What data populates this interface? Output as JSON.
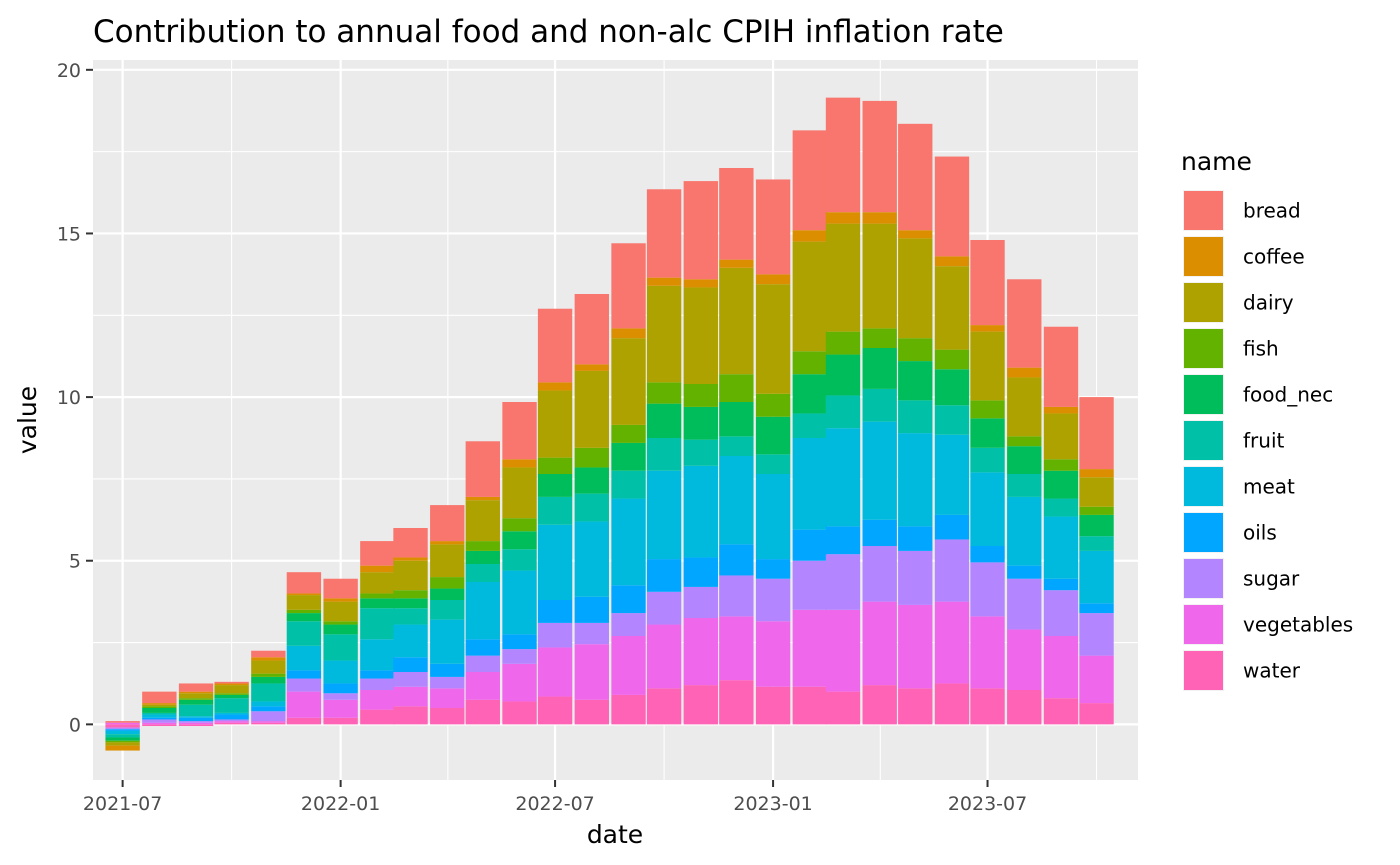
{
  "chart_data": {
    "type": "bar",
    "stacked": true,
    "title": "Contribution to annual food and non-alc CPIH inflation rate",
    "xlabel": "date",
    "ylabel": "value",
    "ylim": [
      -1.7,
      20.3
    ],
    "xlim": [
      "2021-06-06",
      "2023-11-05"
    ],
    "yticks": [
      0,
      5,
      10,
      15,
      20
    ],
    "xticks": [
      "2021-07",
      "2022-01",
      "2022-07",
      "2023-01",
      "2023-07"
    ],
    "legend_title": "name",
    "legend_position": "right",
    "grid": true,
    "x": [
      "2021-07-01",
      "2021-08-01",
      "2021-09-01",
      "2021-10-01",
      "2021-11-01",
      "2021-12-01",
      "2022-01-01",
      "2022-02-01",
      "2022-03-01",
      "2022-04-01",
      "2022-05-01",
      "2022-06-01",
      "2022-07-01",
      "2022-08-01",
      "2022-09-01",
      "2022-10-01",
      "2022-11-01",
      "2022-12-01",
      "2023-01-01",
      "2023-02-01",
      "2023-03-01",
      "2023-04-01",
      "2023-05-01",
      "2023-06-01",
      "2023-07-01",
      "2023-08-01",
      "2023-09-01",
      "2023-10-01"
    ],
    "series": [
      {
        "name": "bread",
        "color": "#F8766D",
        "values": [
          0.05,
          0.35,
          0.25,
          0.05,
          0.2,
          0.65,
          0.6,
          0.75,
          0.9,
          1.1,
          1.7,
          1.75,
          2.25,
          2.15,
          2.6,
          2.7,
          3.0,
          2.8,
          2.9,
          3.05,
          3.5,
          3.4,
          3.25,
          3.05,
          2.6,
          2.7,
          2.45,
          2.2
        ]
      },
      {
        "name": "coffee",
        "color": "#DB8E00",
        "values": [
          -0.15,
          0.05,
          0.05,
          0.05,
          0.1,
          0.05,
          0.1,
          0.2,
          0.1,
          0.1,
          0.1,
          0.25,
          0.25,
          0.2,
          0.3,
          0.25,
          0.25,
          0.25,
          0.3,
          0.35,
          0.35,
          0.35,
          0.25,
          0.3,
          0.2,
          0.3,
          0.2,
          0.25
        ]
      },
      {
        "name": "dairy",
        "color": "#AEA200",
        "values": [
          -0.1,
          0.05,
          0.15,
          0.25,
          0.4,
          0.45,
          0.6,
          0.65,
          0.9,
          1.0,
          1.25,
          1.55,
          2.05,
          2.35,
          2.65,
          2.95,
          2.95,
          3.25,
          3.35,
          3.35,
          3.3,
          3.2,
          3.05,
          2.55,
          2.1,
          1.8,
          1.4,
          0.9
        ]
      },
      {
        "name": "fish",
        "color": "#64B200",
        "values": [
          -0.05,
          0.05,
          0.05,
          0.05,
          0.1,
          0.1,
          0.1,
          0.15,
          0.25,
          0.35,
          0.3,
          0.4,
          0.5,
          0.6,
          0.55,
          0.65,
          0.7,
          0.85,
          0.7,
          0.7,
          0.7,
          0.6,
          0.7,
          0.6,
          0.55,
          0.3,
          0.35,
          0.25
        ]
      },
      {
        "name": "food_nec",
        "color": "#00BD5C",
        "values": [
          -0.1,
          0.15,
          0.15,
          0.1,
          0.2,
          0.25,
          0.3,
          0.3,
          0.3,
          0.35,
          0.4,
          0.55,
          0.7,
          0.8,
          0.85,
          1.05,
          1.0,
          1.05,
          1.15,
          1.2,
          1.25,
          1.25,
          1.2,
          1.1,
          0.9,
          0.85,
          0.85,
          0.65
        ]
      },
      {
        "name": "fruit",
        "color": "#00C1A7",
        "values": [
          -0.1,
          0.05,
          0.35,
          0.45,
          0.55,
          0.75,
          0.8,
          0.95,
          0.5,
          0.6,
          0.55,
          0.65,
          0.85,
          0.85,
          0.85,
          1.0,
          0.8,
          0.6,
          0.6,
          0.75,
          1.0,
          1.0,
          1.0,
          0.9,
          0.75,
          0.7,
          0.55,
          0.45
        ]
      },
      {
        "name": "meat",
        "color": "#00BADE",
        "values": [
          -0.1,
          0.1,
          0.05,
          0.05,
          0.15,
          0.75,
          0.7,
          0.95,
          1.0,
          1.35,
          1.75,
          1.95,
          2.3,
          2.3,
          2.65,
          2.7,
          2.8,
          2.7,
          2.6,
          2.8,
          3.0,
          3.0,
          2.85,
          2.45,
          2.25,
          2.1,
          1.9,
          1.6
        ]
      },
      {
        "name": "oils",
        "color": "#00A6FF",
        "values": [
          -0.05,
          0.05,
          0.1,
          0.15,
          0.15,
          0.25,
          0.3,
          0.25,
          0.45,
          0.4,
          0.5,
          0.45,
          0.7,
          0.8,
          0.85,
          1.0,
          0.9,
          0.95,
          0.6,
          0.95,
          0.85,
          0.8,
          0.75,
          0.75,
          0.5,
          0.4,
          0.35,
          0.3
        ]
      },
      {
        "name": "sugar",
        "color": "#B385FF",
        "values": [
          -0.05,
          0.1,
          0.05,
          0.05,
          0.3,
          0.4,
          0.2,
          0.35,
          0.45,
          0.35,
          0.5,
          0.45,
          0.75,
          0.65,
          0.7,
          1.0,
          0.95,
          1.25,
          1.3,
          1.5,
          1.7,
          1.7,
          1.65,
          1.9,
          1.65,
          1.55,
          1.4,
          1.3
        ]
      },
      {
        "name": "vegetables",
        "color": "#EF67EB",
        "values": [
          0.05,
          0.05,
          0.05,
          0.05,
          0.05,
          0.8,
          0.55,
          0.6,
          0.6,
          0.6,
          0.85,
          1.15,
          1.5,
          1.7,
          1.8,
          1.95,
          2.05,
          1.95,
          2.0,
          2.35,
          2.5,
          2.55,
          2.55,
          2.5,
          2.2,
          1.85,
          1.9,
          1.45
        ]
      },
      {
        "name": "water",
        "color": "#FF63B6",
        "values": [
          -0.1,
          -0.05,
          -0.05,
          0.05,
          0.05,
          0.2,
          0.2,
          0.45,
          0.55,
          0.5,
          0.75,
          0.7,
          0.85,
          0.75,
          0.9,
          1.1,
          1.2,
          1.35,
          1.15,
          1.15,
          1.0,
          1.2,
          1.1,
          1.25,
          1.1,
          1.05,
          0.8,
          0.65
        ]
      }
    ]
  }
}
